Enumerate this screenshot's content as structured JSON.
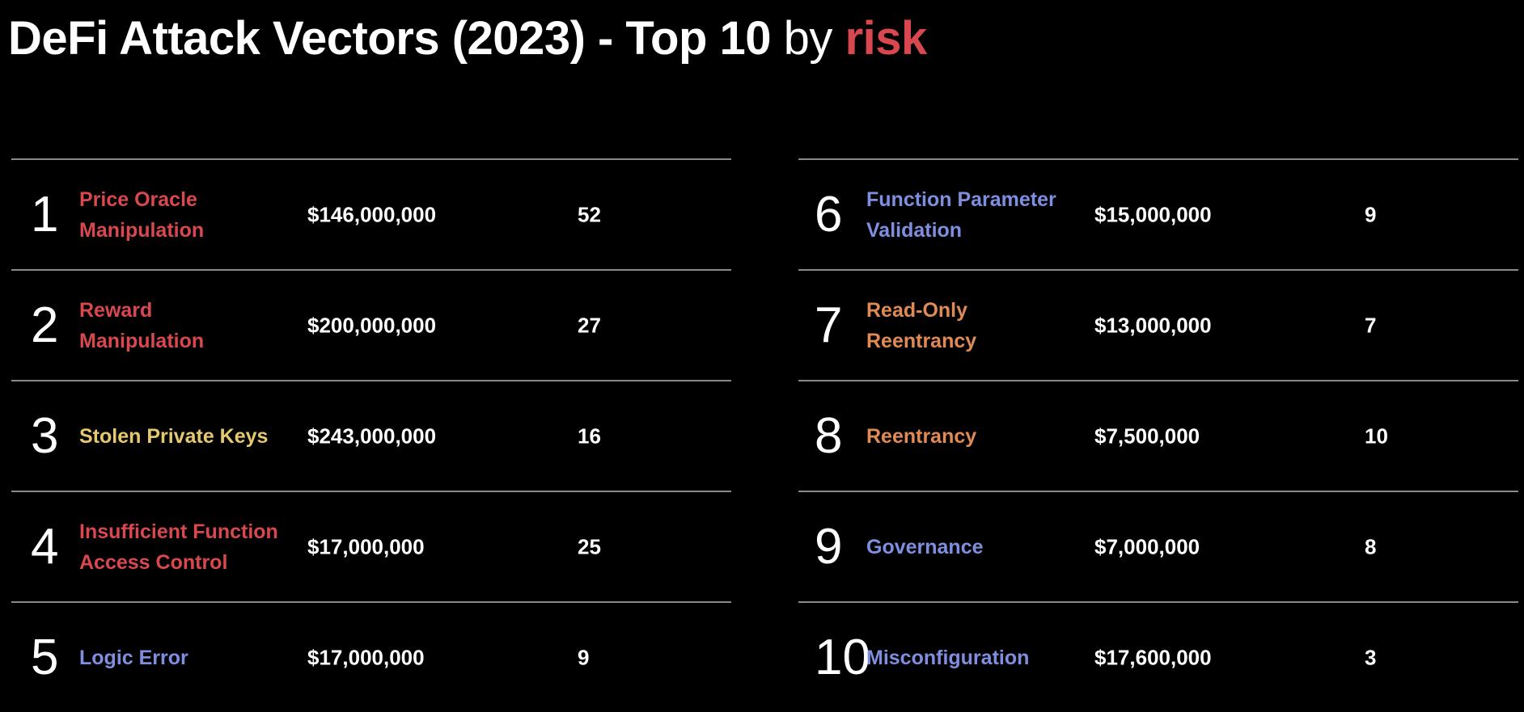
{
  "title": {
    "main": "DeFi Attack Vectors (2023) - Top 10",
    "by": "by",
    "risk": "risk"
  },
  "colors": {
    "background": "#000000",
    "risk_red": "#d9484f",
    "high": "#d9484f",
    "stolen_keys": "#e6c96e",
    "medium": "#e08a55",
    "low": "#7f8fe0"
  },
  "left": [
    {
      "rank": "1",
      "name": "Price Oracle\nManipulation",
      "amount": "$146,000,000",
      "count": "52",
      "color": "#d9484f"
    },
    {
      "rank": "2",
      "name": "Reward\nManipulation",
      "amount": "$200,000,000",
      "count": "27",
      "color": "#d9484f"
    },
    {
      "rank": "3",
      "name": "Stolen Private Keys",
      "amount": "$243,000,000",
      "count": "16",
      "color": "#e6c96e"
    },
    {
      "rank": "4",
      "name": "Insufficient Function\nAccess Control",
      "amount": "$17,000,000",
      "count": "25",
      "color": "#d9484f"
    },
    {
      "rank": "5",
      "name": "Logic Error",
      "amount": "$17,000,000",
      "count": "9",
      "color": "#7f8fe0"
    }
  ],
  "right": [
    {
      "rank": "6",
      "name": "Function Parameter\nValidation",
      "amount": "$15,000,000",
      "count": "9",
      "color": "#7f8fe0"
    },
    {
      "rank": "7",
      "name": "Read-Only\nReentrancy",
      "amount": "$13,000,000",
      "count": "7",
      "color": "#e08a55"
    },
    {
      "rank": "8",
      "name": "Reentrancy",
      "amount": "$7,500,000",
      "count": "10",
      "color": "#e08a55"
    },
    {
      "rank": "9",
      "name": "Governance",
      "amount": "$7,000,000",
      "count": "8",
      "color": "#7f8fe0"
    },
    {
      "rank": "10",
      "name": "Misconfiguration",
      "amount": "$17,600,000",
      "count": "3",
      "color": "#7f8fe0"
    }
  ]
}
